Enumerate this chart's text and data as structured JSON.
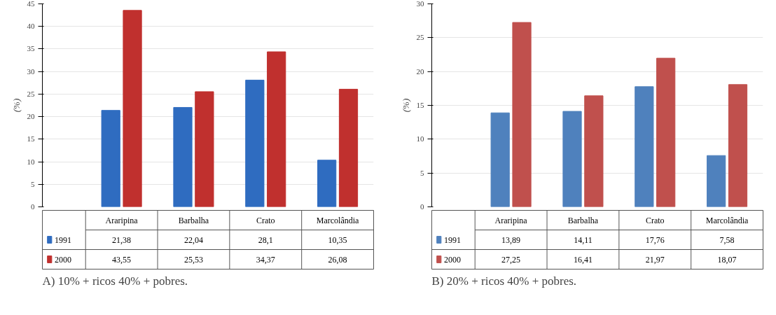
{
  "chart_data": [
    {
      "type": "bar",
      "ylabel": "(%)",
      "categories": [
        "Araripina",
        "Barbalha",
        "Crato",
        "Marcolândia"
      ],
      "series": [
        {
          "name": "1991",
          "color": "#2f6cc0",
          "values": [
            21.38,
            22.04,
            28.1,
            10.35
          ],
          "value_labels": [
            "21,38",
            "22,04",
            "28,1",
            "10,35"
          ]
        },
        {
          "name": "2000",
          "color": "#c0302e",
          "values": [
            43.55,
            25.53,
            34.37,
            26.08
          ],
          "value_labels": [
            "43,55",
            "25,53",
            "34,37",
            "26,08"
          ]
        }
      ],
      "ylim": [
        0,
        45
      ],
      "yticks": [
        0,
        5,
        10,
        15,
        20,
        25,
        30,
        35,
        40,
        45
      ],
      "grid": "y",
      "legend": "bottom",
      "annotations": [
        "A) 10% + ricos 40% + pobres."
      ]
    },
    {
      "type": "bar",
      "ylabel": "(%)",
      "categories": [
        "Araripina",
        "Barbalha",
        "Crato",
        "Marcolândia"
      ],
      "series": [
        {
          "name": "1991",
          "color": "#4f81bd",
          "values": [
            13.89,
            14.11,
            17.76,
            7.58
          ],
          "value_labels": [
            "13,89",
            "14,11",
            "17,76",
            "7,58"
          ]
        },
        {
          "name": "2000",
          "color": "#c0504d",
          "values": [
            27.25,
            16.41,
            21.97,
            18.07
          ],
          "value_labels": [
            "27,25",
            "16,41",
            "21,97",
            "18,07"
          ]
        }
      ],
      "ylim": [
        0,
        30
      ],
      "yticks": [
        0,
        5,
        10,
        15,
        20,
        25,
        30
      ],
      "grid": "y",
      "legend": "bottom",
      "annotations": [
        "B) 20% + ricos 40% + pobres."
      ]
    }
  ]
}
